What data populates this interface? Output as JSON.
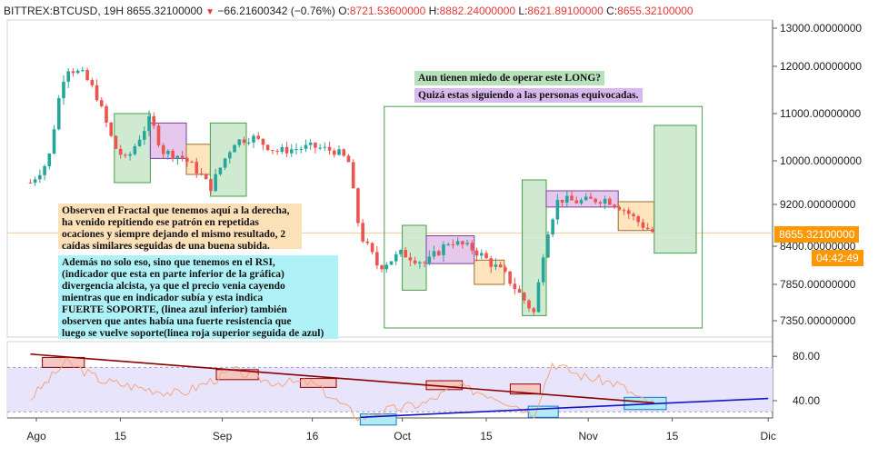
{
  "header": {
    "symbol": "BITTREX:BTCUSD, 19H",
    "last": "8655.32100000",
    "change": "−66.21600342 (−0.76%)",
    "o_label": "O:",
    "o": "8721.53600000",
    "h_label": "H:",
    "h": "8882.24000000",
    "l_label": "L:",
    "l": "8621.89100000",
    "c_label": "C:",
    "c": "8655.32100000"
  },
  "annotations": {
    "question": "Aun tienen miedo de operar este LONG?",
    "warning": "Quizá estas siguiendo a las personas equivocadas.",
    "fractal_note": [
      "Observen el Fractal que tenemos aquí a la derecha,",
      "ha venido repitiendo ese patrón en repetidas",
      "ocaciones y siempre dejando el mismo resultado, 2",
      "caídas similares seguidas de una buena subida."
    ],
    "rsi_note": [
      "Además no solo eso, sino que tenemos en el RSI,",
      "(indicador que esta en parte inferior de la gráfica)",
      "divergencia alcista, ya que el precio venia cayendo",
      "mientras que en indicador subía y esta indica",
      "FUERTE SOPORTE, (linea azul inferior) también",
      "observen que antes había una fuerte resistencia que",
      "luego se vuelve soporte(linea roja superior seguida de azul)"
    ]
  },
  "price_label": "8655.32100000",
  "countdown_label": "04:42:49",
  "colors": {
    "up": "#26a69a",
    "down": "#ef5350",
    "green_box": "#c8e6c9",
    "purple_box": "#e1bee7",
    "orange_box": "#ffe0b2",
    "cyan_box": "#b2ebf2",
    "red_box": "#f4c7c3",
    "rsi_line": "#f4a582",
    "rsi_band": "#e8e4fb",
    "resistance": "#8b0000",
    "support": "#1515c8",
    "last_price": "#ff9800"
  },
  "chart_data": {
    "type": "candlestick",
    "price_axis": {
      "ticks": [
        13000,
        12000,
        11000,
        10000,
        9200,
        8400,
        7850,
        7350
      ],
      "tick_labels": [
        "13000.00000000",
        "12000.00000000",
        "11000.00000000",
        "10000.00000000",
        "9200.00000000",
        "8400.00000000",
        "7850.00000000",
        "7350.00000000"
      ]
    },
    "rsi_axis": {
      "ticks": [
        80,
        40
      ],
      "tick_labels": [
        "80.00",
        "40.00"
      ],
      "band": [
        30,
        70
      ]
    },
    "time_axis": {
      "labels": [
        "Ago",
        "15",
        "Sep",
        "16",
        "Oct",
        "15",
        "Nov",
        "15",
        "Dic"
      ]
    },
    "price_path": [
      [
        "2019-07-31",
        9600
      ],
      [
        "2019-08-03",
        10000
      ],
      [
        "2019-08-05",
        11500
      ],
      [
        "2019-08-06",
        12000
      ],
      [
        "2019-08-09",
        11800
      ],
      [
        "2019-08-11",
        11400
      ],
      [
        "2019-08-14",
        10300
      ],
      [
        "2019-08-16",
        10000
      ],
      [
        "2019-08-20",
        10900
      ],
      [
        "2019-08-22",
        10200
      ],
      [
        "2019-08-25",
        10100
      ],
      [
        "2019-08-28",
        9800
      ],
      [
        "2019-08-30",
        9500
      ],
      [
        "2019-09-03",
        10400
      ],
      [
        "2019-09-06",
        10500
      ],
      [
        "2019-09-10",
        10200
      ],
      [
        "2019-09-16",
        10300
      ],
      [
        "2019-09-20",
        10200
      ],
      [
        "2019-09-22",
        10000
      ],
      [
        "2019-09-24",
        8600
      ],
      [
        "2019-09-27",
        8100
      ],
      [
        "2019-10-01",
        8300
      ],
      [
        "2019-10-05",
        8150
      ],
      [
        "2019-10-09",
        8500
      ],
      [
        "2019-10-13",
        8350
      ],
      [
        "2019-10-18",
        8000
      ],
      [
        "2019-10-23",
        7450
      ],
      [
        "2019-10-25",
        8600
      ],
      [
        "2019-10-27",
        9300
      ],
      [
        "2019-10-30",
        9250
      ],
      [
        "2019-11-04",
        9300
      ],
      [
        "2019-11-07",
        9100
      ],
      [
        "2019-11-10",
        8800
      ],
      [
        "2019-11-12",
        8655
      ]
    ],
    "rsi_path": [
      [
        "2019-07-31",
        42
      ],
      [
        "2019-08-06",
        75
      ],
      [
        "2019-08-12",
        58
      ],
      [
        "2019-08-18",
        52
      ],
      [
        "2019-08-25",
        46
      ],
      [
        "2019-09-03",
        67
      ],
      [
        "2019-09-09",
        57
      ],
      [
        "2019-09-16",
        56
      ],
      [
        "2019-09-24",
        24
      ],
      [
        "2019-09-28",
        31
      ],
      [
        "2019-10-05",
        38
      ],
      [
        "2019-10-10",
        53
      ],
      [
        "2019-10-16",
        45
      ],
      [
        "2019-10-23",
        29
      ],
      [
        "2019-10-26",
        74
      ],
      [
        "2019-10-31",
        62
      ],
      [
        "2019-11-06",
        55
      ],
      [
        "2019-11-10",
        40
      ],
      [
        "2019-11-12",
        38
      ]
    ],
    "rsi_lines": [
      {
        "name": "resistance",
        "from": [
          "2019-07-31",
          82
        ],
        "to": [
          "2019-11-12",
          38
        ]
      },
      {
        "name": "support",
        "from": [
          "2019-09-24",
          25
        ],
        "to": [
          "2019-12-01",
          42
        ]
      }
    ],
    "pattern_boxes": [
      {
        "kind": "green",
        "from": "2019-08-14",
        "to": "2019-08-20",
        "top": 11000,
        "bottom": 9600
      },
      {
        "kind": "purple",
        "from": "2019-08-20",
        "to": "2019-08-26",
        "top": 10800,
        "bottom": 10050
      },
      {
        "kind": "orange",
        "from": "2019-08-26",
        "to": "2019-08-30",
        "top": 10350,
        "bottom": 9750
      },
      {
        "kind": "green",
        "from": "2019-08-30",
        "to": "2019-09-05",
        "top": 10800,
        "bottom": 9350
      },
      {
        "kind": "green",
        "from": "2019-10-01",
        "to": "2019-10-05",
        "top": 8800,
        "bottom": 7770
      },
      {
        "kind": "purple",
        "from": "2019-10-05",
        "to": "2019-10-13",
        "top": 8600,
        "bottom": 8150
      },
      {
        "kind": "orange",
        "from": "2019-10-13",
        "to": "2019-10-18",
        "top": 8200,
        "bottom": 7850
      },
      {
        "kind": "green",
        "from": "2019-10-21",
        "to": "2019-10-25",
        "top": 9650,
        "bottom": 7420
      },
      {
        "kind": "purple",
        "from": "2019-10-25",
        "to": "2019-11-06",
        "top": 9450,
        "bottom": 9150
      },
      {
        "kind": "orange",
        "from": "2019-11-06",
        "to": "2019-11-12",
        "top": 9250,
        "bottom": 8700
      },
      {
        "kind": "green",
        "from": "2019-11-12",
        "to": "2019-11-19",
        "top": 10750,
        "bottom": 8300
      }
    ],
    "fractal_frame": {
      "from": "2019-09-28",
      "to": "2019-11-20",
      "top": 11150,
      "bottom": 7250
    },
    "rsi_boxes": [
      {
        "kind": "red",
        "from": "2019-08-02",
        "to": "2019-08-09",
        "top": 79,
        "bottom": 70
      },
      {
        "kind": "red",
        "from": "2019-08-31",
        "to": "2019-09-07",
        "top": 68,
        "bottom": 59
      },
      {
        "kind": "red",
        "from": "2019-09-14",
        "to": "2019-09-20",
        "top": 60,
        "bottom": 52
      },
      {
        "kind": "cyan",
        "from": "2019-09-24",
        "to": "2019-09-30",
        "top": 28,
        "bottom": 18
      },
      {
        "kind": "red",
        "from": "2019-10-05",
        "to": "2019-10-11",
        "top": 58,
        "bottom": 50
      },
      {
        "kind": "red",
        "from": "2019-10-19",
        "to": "2019-10-24",
        "top": 55,
        "bottom": 46
      },
      {
        "kind": "cyan",
        "from": "2019-10-22",
        "to": "2019-10-27",
        "top": 35,
        "bottom": 25
      },
      {
        "kind": "cyan",
        "from": "2019-11-07",
        "to": "2019-11-14",
        "top": 43,
        "bottom": 32
      }
    ]
  }
}
